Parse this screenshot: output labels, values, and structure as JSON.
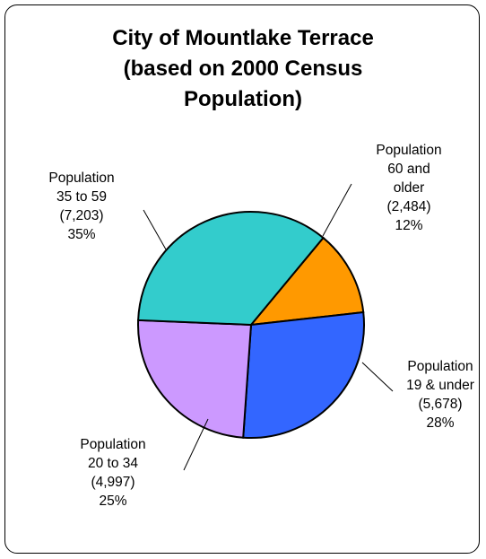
{
  "chart_data": {
    "type": "pie",
    "title_lines": [
      "City of Mountlake Terrace",
      "(based on 2000 Census",
      "Population)"
    ],
    "slices": [
      {
        "label_lines": [
          "Population",
          "60 and",
          "older"
        ],
        "value": 2484,
        "value_label": "(2,484)",
        "percent_label": "12%",
        "color": "#FF9900"
      },
      {
        "label_lines": [
          "Population",
          "19 & under"
        ],
        "value": 5678,
        "value_label": "(5,678)",
        "percent_label": "28%",
        "color": "#3366FF"
      },
      {
        "label_lines": [
          "Population",
          "20 to 34"
        ],
        "value": 4997,
        "value_label": "(4,997)",
        "percent_label": "25%",
        "color": "#CC99FF"
      },
      {
        "label_lines": [
          "Population",
          "35 to 59"
        ],
        "value": 7203,
        "value_label": "(7,203)",
        "percent_label": "35%",
        "color": "#33CCCC"
      }
    ],
    "legend": "none"
  }
}
